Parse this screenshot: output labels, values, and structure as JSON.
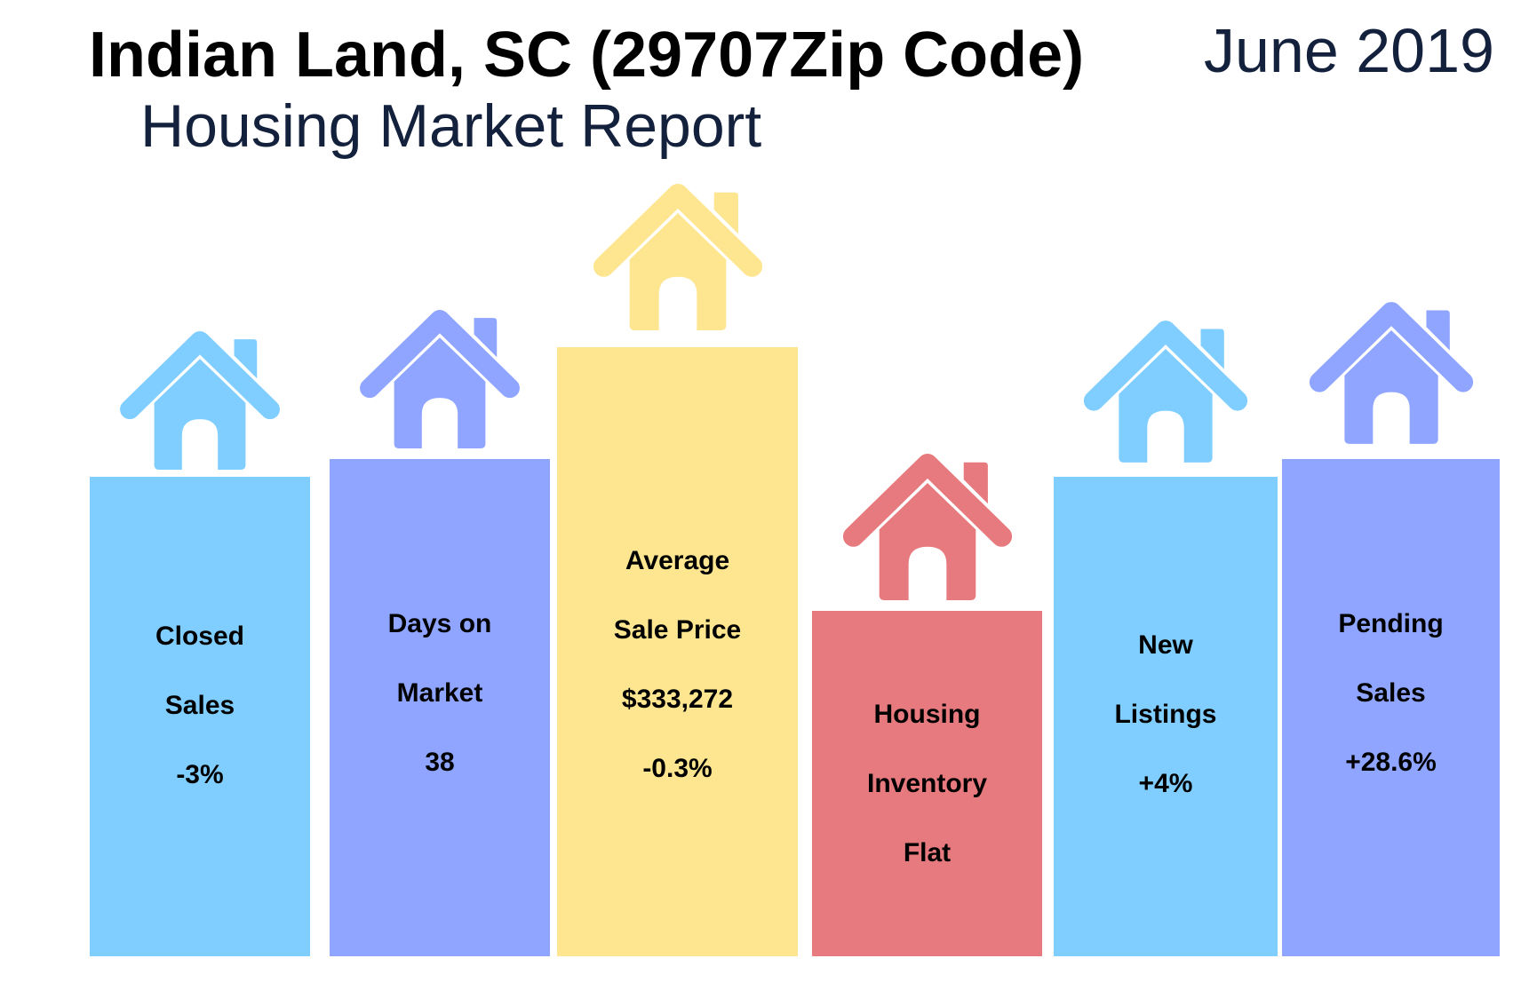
{
  "header": {
    "title": "Indian Land, SC (29707Zip Code)",
    "subtitle": "Housing Market Report",
    "date": "June 2019"
  },
  "colors": {
    "blue": "#80ceff",
    "purple": "#8fa5ff",
    "yellow": "#fde68f",
    "red": "#e77a7e",
    "title_navy": "#14213d"
  },
  "metrics": [
    {
      "name": "closed-sales",
      "color": "#80ceff",
      "icon": "house-icon",
      "lines": [
        "Closed",
        "Sales",
        "-3%"
      ]
    },
    {
      "name": "days-on-market",
      "color": "#8fa5ff",
      "icon": "house-icon",
      "lines": [
        "Days on",
        "Market",
        "38"
      ]
    },
    {
      "name": "average-sale-price",
      "color": "#fde68f",
      "icon": "house-icon",
      "lines": [
        "Average",
        "Sale Price",
        "$333,272",
        "-0.3%"
      ]
    },
    {
      "name": "housing-inventory",
      "color": "#e77a7e",
      "icon": "house-icon",
      "lines": [
        "Housing",
        "Inventory",
        "Flat"
      ]
    },
    {
      "name": "new-listings",
      "color": "#80ceff",
      "icon": "house-icon",
      "lines": [
        "New",
        "Listings",
        "+4%"
      ]
    },
    {
      "name": "pending-sales",
      "color": "#8fa5ff",
      "icon": "house-icon",
      "lines": [
        "Pending",
        "Sales",
        "+28.6%"
      ]
    }
  ]
}
